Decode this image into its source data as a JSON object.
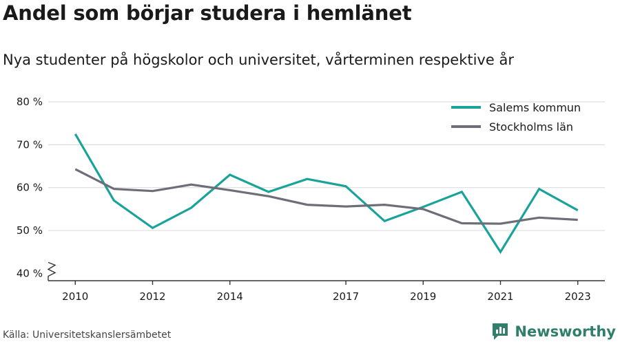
{
  "header": {
    "title": "Andel som börjar studera i hemlänet",
    "subtitle": "Nya studenter på högskolor och universitet, vårterminen respektive år"
  },
  "footer": {
    "source": "Källa: Universitetskanslersämbetet",
    "brand": "Newsworthy"
  },
  "colors": {
    "salem": "#1aa39a",
    "stockholm": "#6e6e78",
    "grid": "#dddddd",
    "axis": "#333333",
    "brand": "#2f7f6a"
  },
  "chart_data": {
    "type": "line",
    "x": [
      2010,
      2011,
      2012,
      2013,
      2014,
      2015,
      2016,
      2017,
      2018,
      2019,
      2020,
      2021,
      2022,
      2023
    ],
    "x_tick_values": [
      2010,
      2012,
      2014,
      2017,
      2019,
      2021,
      2023
    ],
    "x_tick_labels": [
      "2010",
      "2012",
      "2014",
      "2017",
      "2019",
      "2021",
      "2023"
    ],
    "y_tick_values": [
      40,
      50,
      60,
      70,
      80
    ],
    "y_tick_labels": [
      "40 %",
      "50 %",
      "60 %",
      "70 %",
      "80 %"
    ],
    "xlim": [
      2009.3,
      2023.7
    ],
    "ylim": [
      38.3,
      80
    ],
    "grid": true,
    "y_axis_break": true,
    "legend_position": "top-right",
    "series": [
      {
        "name": "Salems kommun",
        "color": "#1aa39a",
        "values": [
          72.5,
          57.0,
          50.6,
          55.3,
          63.0,
          59.0,
          62.0,
          60.3,
          52.2,
          55.5,
          59.0,
          45.0,
          59.7,
          54.7
        ]
      },
      {
        "name": "Stockholms län",
        "color": "#6e6e78",
        "values": [
          64.3,
          59.7,
          59.2,
          60.7,
          59.4,
          58.0,
          56.0,
          55.6,
          56.0,
          55.0,
          51.7,
          51.6,
          53.0,
          52.5
        ]
      }
    ]
  }
}
